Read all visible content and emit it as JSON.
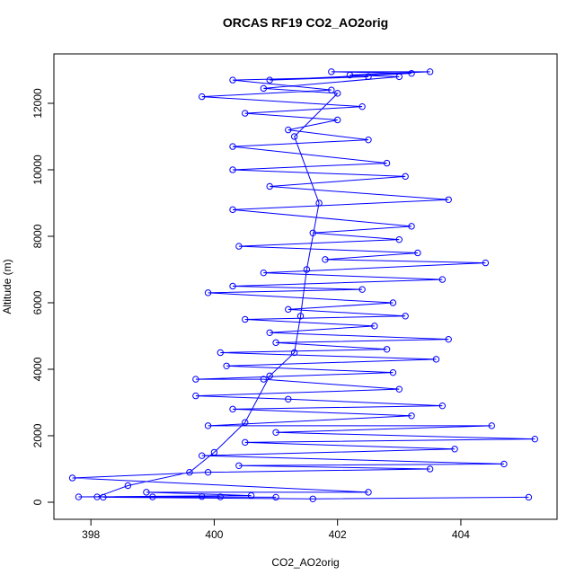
{
  "chart_data": {
    "type": "line",
    "title": "ORCAS RF19 CO2_AO2orig",
    "x_label": "CO2_AO2orig",
    "y_label": "Altitude (m)",
    "xlim": [
      397.4,
      405.56
    ],
    "ylim": [
      -514,
      13486
    ],
    "xticks": [
      398,
      400,
      402,
      404
    ],
    "yticks": [
      0,
      2000,
      4000,
      6000,
      8000,
      10000,
      12000
    ],
    "grid": false,
    "markers": "open-circle",
    "x": [
      405.1,
      401.6,
      398.2,
      399.8,
      397.8,
      400.6,
      398.9,
      402.5,
      397.7,
      399.9,
      403.5,
      400.4,
      404.7,
      399.8,
      403.9,
      400.5,
      405.2,
      401.0,
      404.5,
      399.9,
      403.2,
      400.3,
      403.7,
      401.2,
      399.7,
      403.0,
      400.8,
      399.7,
      402.9,
      400.2,
      403.6,
      400.1,
      402.8,
      401.0,
      403.8,
      400.9,
      402.6,
      400.5,
      403.1,
      401.2,
      402.9,
      399.9,
      402.4,
      400.3,
      403.7,
      400.8,
      404.4,
      401.8,
      403.3,
      400.4,
      403.0,
      401.6,
      403.2,
      400.3,
      403.8,
      400.9,
      403.1,
      400.3,
      402.8,
      400.3,
      402.5,
      401.2,
      402.0,
      400.5,
      402.4,
      399.8,
      401.9,
      400.3,
      402.5,
      400.9,
      403.2,
      401.9,
      403.5,
      402.2,
      403.0,
      400.8,
      402.0,
      401.3,
      401.7,
      401.5,
      401.4,
      401.3,
      400.9,
      400.5,
      400.0,
      399.6,
      398.6,
      398.1,
      400.1,
      399.0,
      401.0
    ],
    "series": [
      {
        "name": "CO2_AO2orig",
        "color": "#0000ff",
        "values": [
          150,
          100,
          150,
          170,
          160,
          200,
          300,
          300,
          730,
          900,
          1000,
          1100,
          1150,
          1400,
          1600,
          1800,
          1900,
          2100,
          2300,
          2300,
          2600,
          2800,
          2900,
          3100,
          3200,
          3400,
          3700,
          3700,
          3900,
          4100,
          4300,
          4500,
          4600,
          4800,
          4900,
          5100,
          5300,
          5500,
          5600,
          5800,
          6000,
          6300,
          6400,
          6500,
          6700,
          6900,
          7200,
          7300,
          7500,
          7700,
          7900,
          8100,
          8300,
          8800,
          9100,
          9500,
          9800,
          10000,
          10200,
          10700,
          10900,
          11200,
          11500,
          11700,
          11900,
          12200,
          12400,
          12700,
          12800,
          12700,
          12900,
          12950,
          12950,
          12850,
          12800,
          12450,
          12300,
          11000,
          9000,
          7000,
          5600,
          4500,
          3800,
          2400,
          1500,
          900,
          500,
          160,
          160,
          160,
          150
        ]
      }
    ]
  }
}
